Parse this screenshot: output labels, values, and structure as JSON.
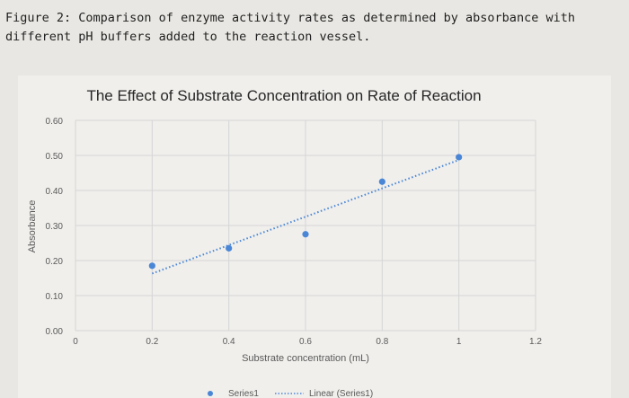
{
  "caption": "Figure 2: Comparison of enzyme activity rates as determined by absorbance with different pH buffers added to the reaction vessel.",
  "chart_data": {
    "type": "scatter",
    "title": "The Effect of Substrate Concentration on Rate of Reaction",
    "xlabel": "Substrate concentration (mL)",
    "ylabel": "Absorbance",
    "xlim": [
      0,
      1.2
    ],
    "ylim": [
      0,
      0.6
    ],
    "x_ticks": [
      "0",
      "0.2",
      "0.4",
      "0.6",
      "0.8",
      "1",
      "1.2"
    ],
    "y_ticks": [
      "0.00",
      "0.10",
      "0.20",
      "0.30",
      "0.40",
      "0.50",
      "0.60"
    ],
    "grid": true,
    "legend_position": "bottom",
    "series": [
      {
        "name": "Series1",
        "color": "#4a86d6",
        "x": [
          0.2,
          0.4,
          0.6,
          0.8,
          1.0
        ],
        "y": [
          0.185,
          0.235,
          0.275,
          0.425,
          0.495
        ]
      }
    ],
    "trendline": {
      "name": "Linear (Series1)",
      "type": "linear",
      "color": "#4a86d6",
      "x": [
        0.2,
        1.0
      ],
      "y": [
        0.163,
        0.487
      ]
    }
  }
}
